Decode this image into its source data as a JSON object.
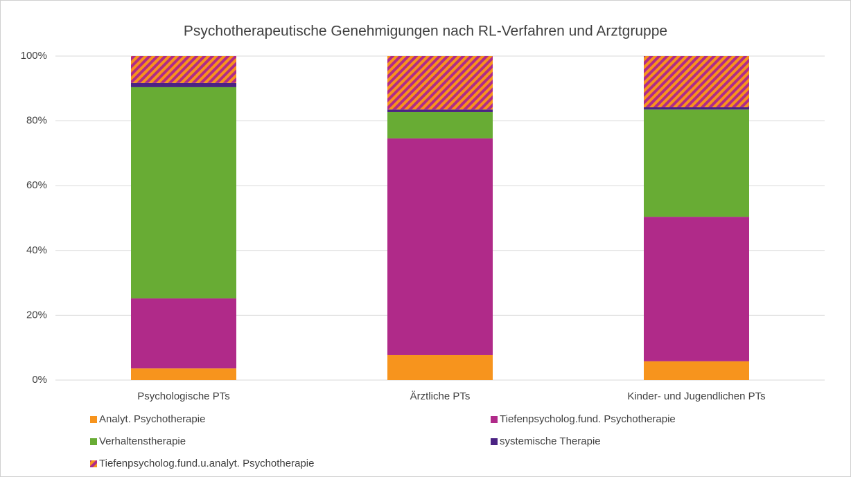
{
  "chart_data": {
    "type": "stacked_bar",
    "title": "Psychotherapeutische Genehmigungen nach RL-Verfahren und Arztgruppe",
    "categories": [
      "Psychologische PTs",
      "Ärztliche PTs",
      "Kinder- und Jugendlichen PTs"
    ],
    "series": [
      {
        "name": "Analyt. Psychotherapie",
        "color": "#f7941d",
        "values": [
          3.6,
          7.7,
          5.8
        ]
      },
      {
        "name": "Tiefenpsycholog.fund. Psychotherapie",
        "color": "#b02a89",
        "values": [
          21.6,
          66.9,
          44.6
        ]
      },
      {
        "name": "Verhaltenstherapie",
        "color": "#68ac34",
        "values": [
          65.2,
          8.1,
          33.1
        ]
      },
      {
        "name": "systemische Therapie",
        "color": "#4b2383",
        "values": [
          1.3,
          0.8,
          0.7
        ]
      },
      {
        "name": "Tiefenpsycholog.fund.u.analyt. Psychotherapie",
        "color": "#f7941d",
        "hatch_color": "#b02a89",
        "values": [
          8.3,
          16.5,
          15.8
        ]
      }
    ],
    "ylim": [
      0,
      100
    ],
    "yticks": [
      {
        "value": 0,
        "label": "0%"
      },
      {
        "value": 20,
        "label": "20%"
      },
      {
        "value": 40,
        "label": "40%"
      },
      {
        "value": 60,
        "label": "60%"
      },
      {
        "value": 80,
        "label": "80%"
      },
      {
        "value": 100,
        "label": "100%"
      }
    ],
    "grid": true,
    "legend": "bottom"
  }
}
